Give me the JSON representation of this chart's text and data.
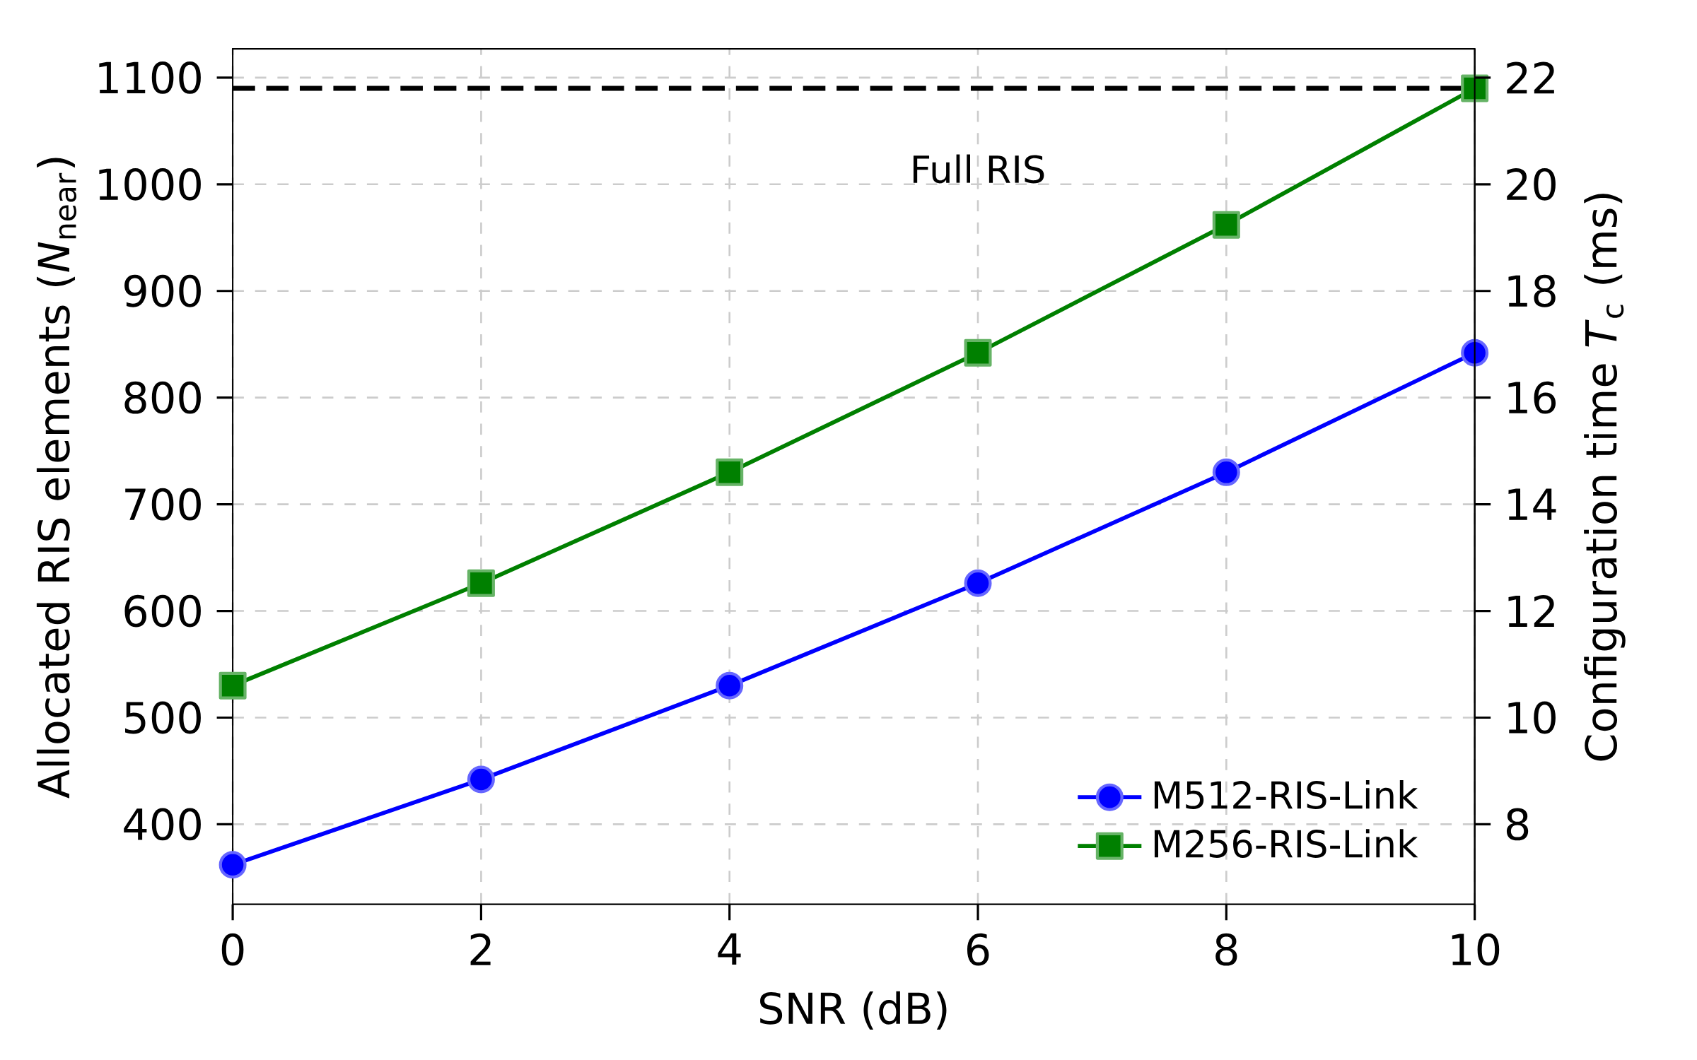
{
  "chart_data": {
    "type": "line",
    "xlabel": "SNR (dB)",
    "ylabel": "Allocated RIS elements (*N*$_{near}$)",
    "y2label": "Configuration time *T*$_{c}$ (ms)",
    "x": [
      0,
      2,
      4,
      6,
      8,
      10
    ],
    "series": [
      {
        "name": "M512-RIS-Link",
        "color": "#0000ff",
        "marker": "circle",
        "values": [
          362,
          442,
          530,
          626,
          730,
          842
        ]
      },
      {
        "name": "M256-RIS-Link",
        "color": "#008000",
        "marker": "square",
        "values": [
          530,
          626,
          730,
          842,
          962,
          1090
        ]
      }
    ],
    "xlim": [
      0,
      10
    ],
    "xticks": [
      0,
      2,
      4,
      6,
      8,
      10
    ],
    "ylim": [
      325,
      1127
    ],
    "yticks": [
      400,
      500,
      600,
      700,
      800,
      900,
      1000,
      1100
    ],
    "y2lim": [
      6.5,
      22.54
    ],
    "y2ticks": [
      8,
      10,
      12,
      14,
      16,
      18,
      20,
      22
    ],
    "ref_lines": [
      {
        "axis": "y",
        "value": 1090,
        "label": "Full RIS",
        "color": "#000000",
        "line_style": "dashed"
      }
    ],
    "grid": true,
    "legend": "bottom right",
    "line_style": "solid"
  }
}
